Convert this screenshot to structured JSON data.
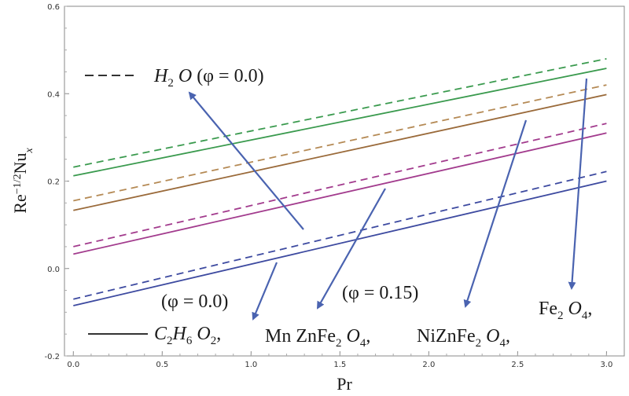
{
  "chart_data": {
    "type": "line",
    "xlabel": "Pr",
    "ylabel": "Re^-1/2 Nu_x",
    "xlim": [
      -0.05,
      3.1
    ],
    "ylim": [
      -0.2,
      0.6
    ],
    "x_ticks": [
      "0.0",
      "0.5",
      "1.0",
      "1.5",
      "2.0",
      "2.5",
      "3.0"
    ],
    "y_ticks": [
      "-0.2",
      "0.0",
      "0.2",
      "0.4",
      "0.6"
    ],
    "grid": false,
    "series": [
      {
        "color": "#3a9a4e",
        "dash": "dashed",
        "x": [
          0,
          3
        ],
        "y": [
          0.232,
          0.48
        ]
      },
      {
        "color": "#3a9a4e",
        "dash": "solid",
        "x": [
          0,
          3
        ],
        "y": [
          0.212,
          0.458
        ]
      },
      {
        "color": "#b58a55",
        "dash": "dashed",
        "x": [
          0,
          3
        ],
        "y": [
          0.155,
          0.42
        ]
      },
      {
        "color": "#9a6a3a",
        "dash": "solid",
        "x": [
          0,
          3
        ],
        "y": [
          0.133,
          0.398
        ]
      },
      {
        "color": "#a23b8d",
        "dash": "dashed",
        "x": [
          0,
          3
        ],
        "y": [
          0.05,
          0.332
        ]
      },
      {
        "color": "#a23b8d",
        "dash": "solid",
        "x": [
          0,
          3
        ],
        "y": [
          0.033,
          0.31
        ]
      },
      {
        "color": "#3d4aa0",
        "dash": "dashed",
        "x": [
          0,
          3
        ],
        "y": [
          -0.07,
          0.222
        ]
      },
      {
        "color": "#3d4aa0",
        "dash": "solid",
        "x": [
          0,
          3
        ],
        "y": [
          -0.085,
          0.2
        ]
      }
    ],
    "annotations": {
      "legend_dashed": {
        "text": "H",
        "sub1": "2",
        "text2": " O",
        "phi": " (φ = 0.0)"
      },
      "legend_solid": {
        "text": "C",
        "sub1": "2",
        "text2": "H",
        "sub2": "6",
        "text3": " O",
        "sub3": "2",
        "tail": ","
      },
      "phi_solid": "(φ = 0.0)",
      "phi_ferro": "(φ = 0.15)",
      "mnzn": {
        "text": "Mn ZnFe",
        "sub1": "2",
        "text2": " O",
        "sub2": "4",
        "tail": ","
      },
      "nizn": {
        "text": "NiZnFe",
        "sub1": "2",
        "text2": " O",
        "sub2": "4",
        "tail": ","
      },
      "fe": {
        "text": "Fe",
        "sub1": "2",
        "text2": " O",
        "sub2": "4",
        "tail": ","
      }
    },
    "arrow_color": "#4a63b0"
  }
}
